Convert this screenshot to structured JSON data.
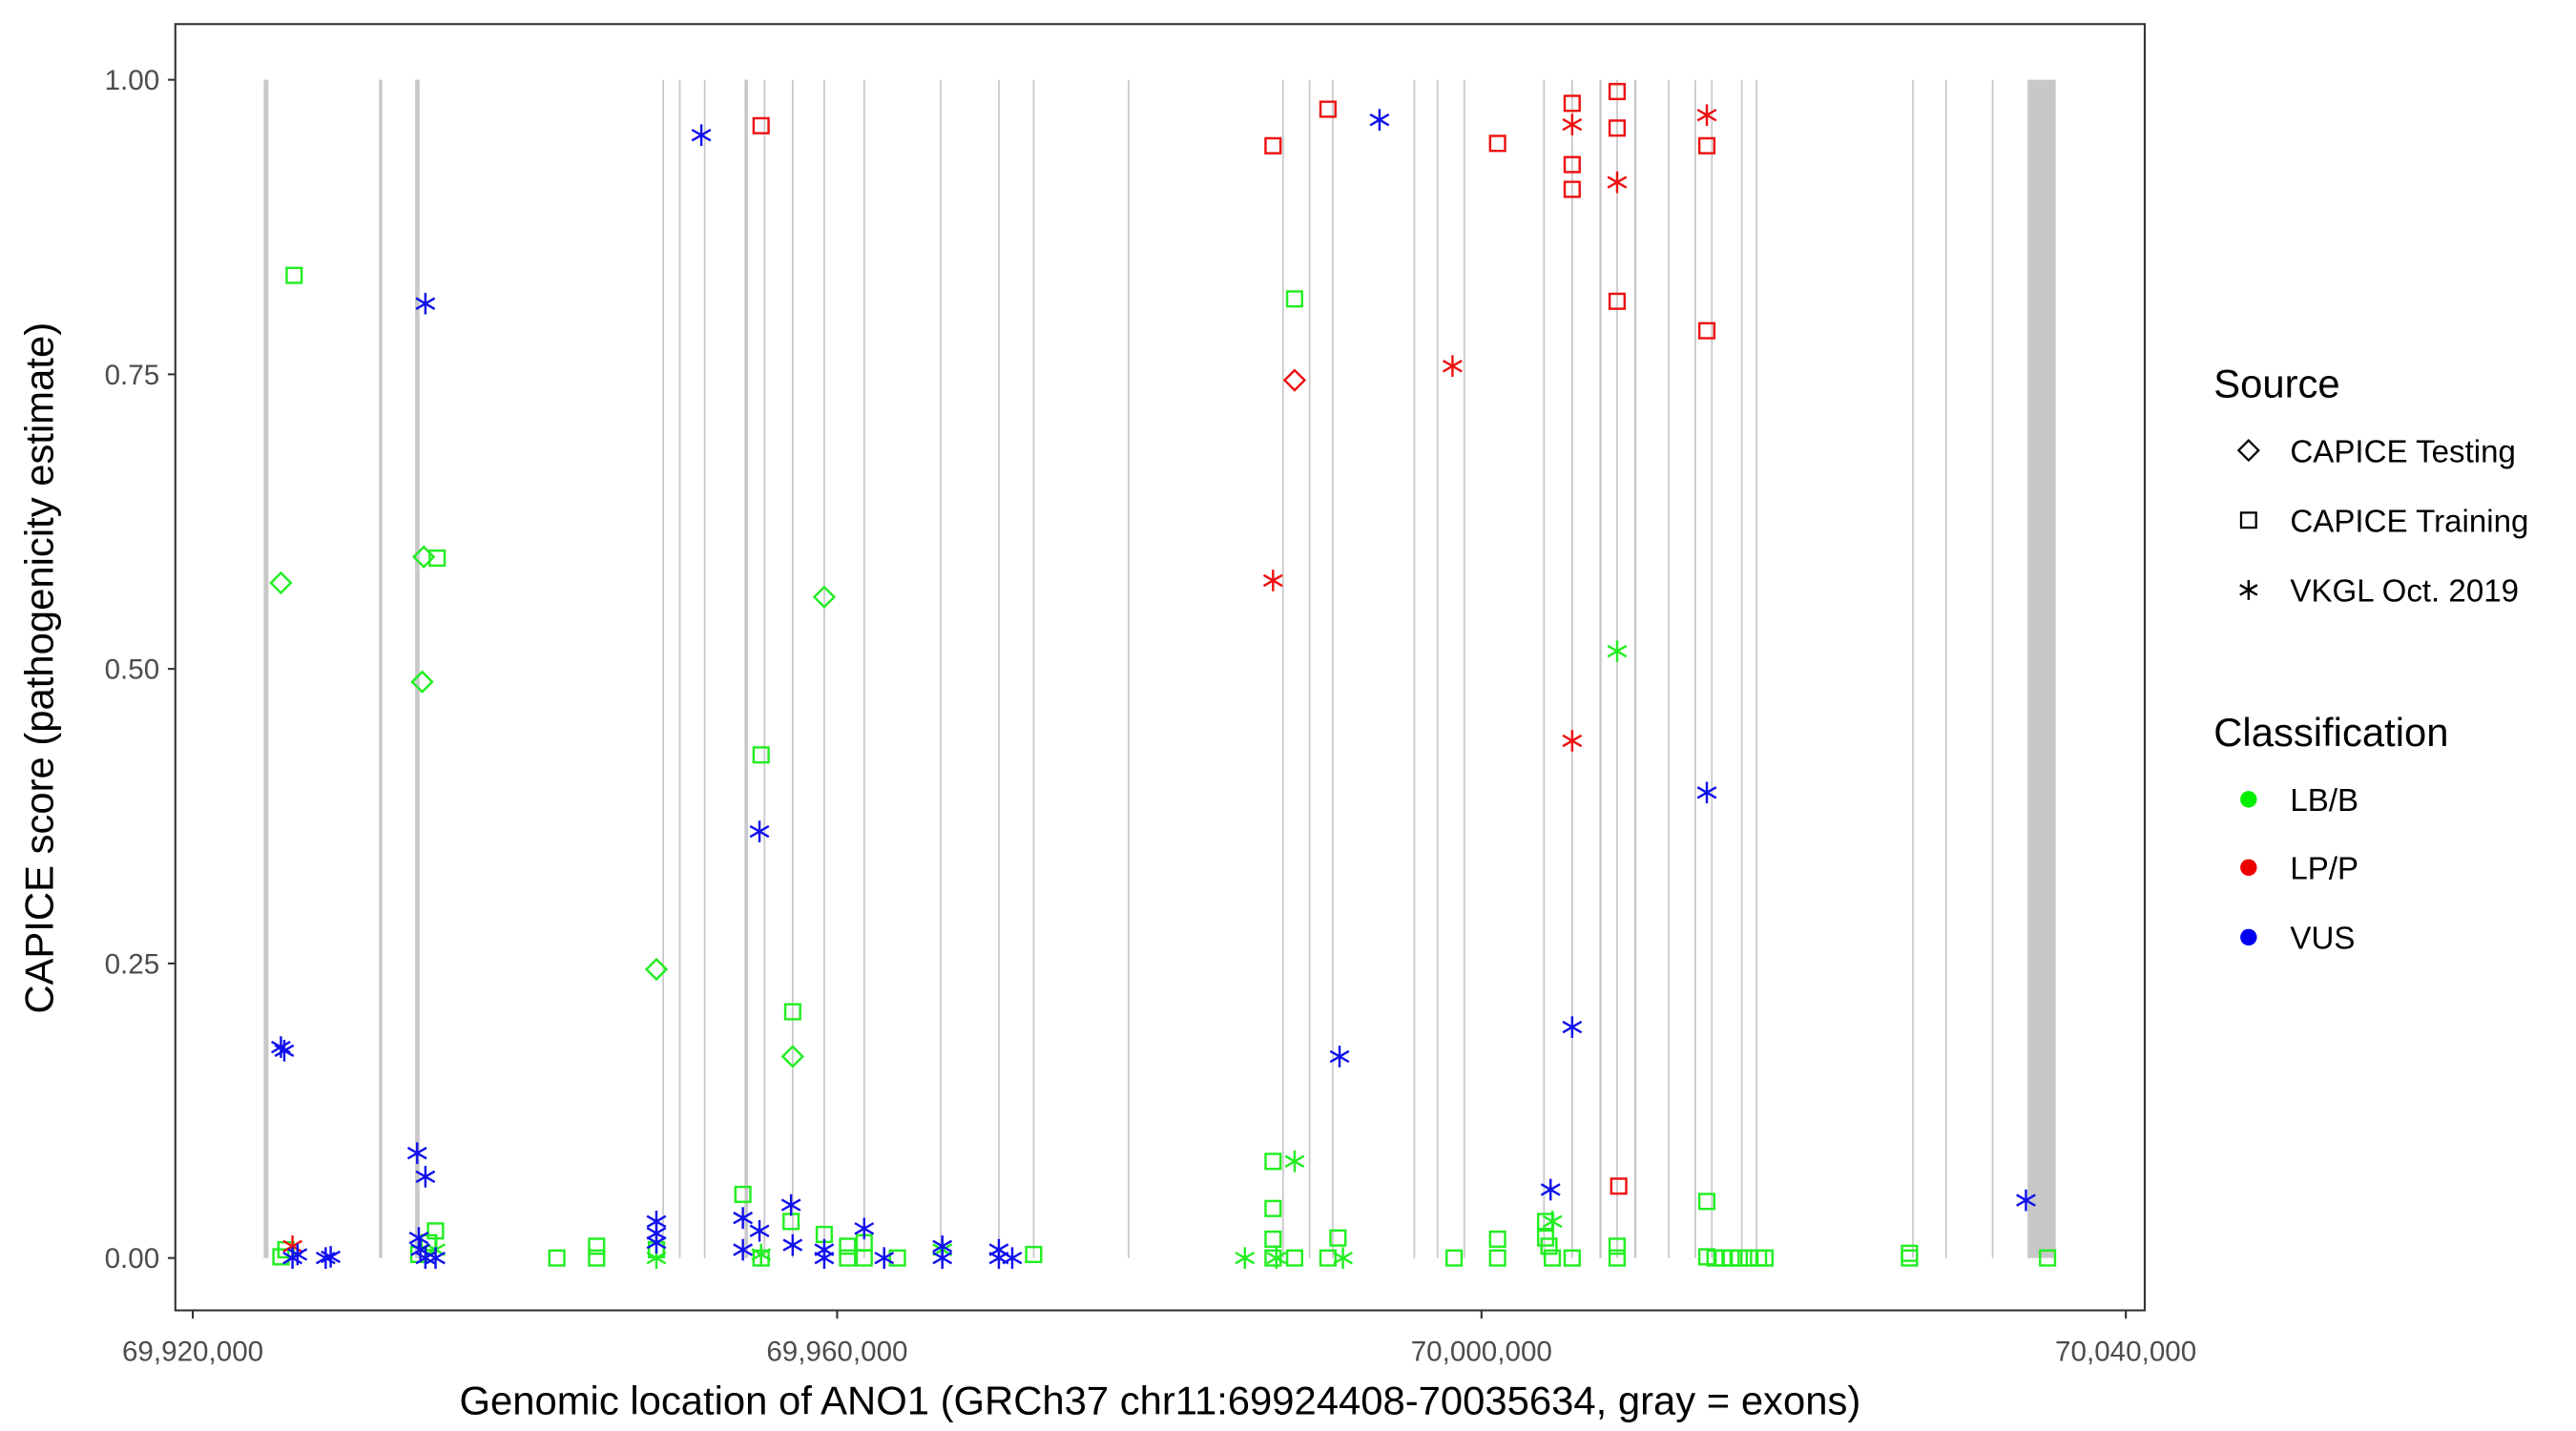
{
  "chart_data": {
    "type": "scatter",
    "xlabel": "Genomic location of ANO1 (GRCh37 chr11:69924408-70035634, gray = exons)",
    "ylabel": "CAPICE score (pathogenicity estimate)",
    "xlim": [
      69917000,
      70040600
    ],
    "ylim": [
      -0.045,
      1.047
    ],
    "xticks": [
      69920000,
      69960000,
      70000000,
      70040000
    ],
    "xtick_labels": [
      "69,920,000",
      "69,960,000",
      "70,000,000",
      "70,040,000"
    ],
    "yticks": [
      0,
      0.25,
      0.5,
      0.75,
      1.0
    ],
    "ytick_labels": [
      "0.00",
      "0.25",
      "0.50",
      "0.75",
      "1.00"
    ],
    "grid": false,
    "legend": {
      "placement": "right",
      "source_title": "Source",
      "source_items": [
        {
          "label": "CAPICE Testing",
          "shape": "diamond"
        },
        {
          "label": "CAPICE Training",
          "shape": "square"
        },
        {
          "label": "VKGL Oct. 2019",
          "shape": "asterisk"
        }
      ],
      "class_title": "Classification",
      "class_items": [
        {
          "label": "LB/B",
          "color": "#00ee00"
        },
        {
          "label": "LP/P",
          "color": "#ee0000"
        },
        {
          "label": "VUS",
          "color": "#0000ee"
        }
      ]
    },
    "colors": {
      "LB/B": "#22ee22",
      "LP/P": "#ee1111",
      "VUS": "#1111ee",
      "exon": "#c8c8c8"
    },
    "exons": [
      [
        69924400,
        69924700
      ],
      [
        69931560,
        69931760
      ],
      [
        69933800,
        69934080
      ],
      [
        69949150,
        69949250
      ],
      [
        69950180,
        69950280
      ],
      [
        69951730,
        69951830
      ],
      [
        69954250,
        69954470
      ],
      [
        69955440,
        69955540
      ],
      [
        69957190,
        69957290
      ],
      [
        69959150,
        69959250
      ],
      [
        69961630,
        69961730
      ],
      [
        69966380,
        69966480
      ],
      [
        69969990,
        69970090
      ],
      [
        69972150,
        69972250
      ],
      [
        69978040,
        69978140
      ],
      [
        69987630,
        69987730
      ],
      [
        69989280,
        69989380
      ],
      [
        69990720,
        69990820
      ],
      [
        69995780,
        69995880
      ],
      [
        69997220,
        69997320
      ],
      [
        69998880,
        69998980
      ],
      [
        70003830,
        70003930
      ],
      [
        70005580,
        70005680
      ],
      [
        70007320,
        70007460
      ],
      [
        70008370,
        70008470
      ],
      [
        70009480,
        70009620
      ],
      [
        70011570,
        70011670
      ],
      [
        70013220,
        70013320
      ],
      [
        70014250,
        70014350
      ],
      [
        70016110,
        70016210
      ],
      [
        70017030,
        70017130
      ],
      [
        70026730,
        70026830
      ],
      [
        70028790,
        70028890
      ],
      [
        70031680,
        70031780
      ],
      [
        70033900,
        70035650
      ]
    ],
    "points": [
      {
        "pos": 69926290,
        "score": 0.834,
        "source": "square",
        "class": "LB/B"
      },
      {
        "pos": 69925470,
        "score": 0.573,
        "source": "diamond",
        "class": "LB/B"
      },
      {
        "pos": 69925470,
        "score": 0.001,
        "source": "square",
        "class": "LB/B"
      },
      {
        "pos": 69925780,
        "score": 0.007,
        "source": "square",
        "class": "LB/B"
      },
      {
        "pos": 69934340,
        "score": 0.595,
        "source": "diamond",
        "class": "LB/B"
      },
      {
        "pos": 69935170,
        "score": 0.594,
        "source": "square",
        "class": "LB/B"
      },
      {
        "pos": 69934240,
        "score": 0.489,
        "source": "diamond",
        "class": "LB/B"
      },
      {
        "pos": 69935070,
        "score": 0.023,
        "source": "square",
        "class": "LB/B"
      },
      {
        "pos": 69934650,
        "score": 0.013,
        "source": "square",
        "class": "LB/B"
      },
      {
        "pos": 69934030,
        "score": 0.003,
        "source": "square",
        "class": "LB/B"
      },
      {
        "pos": 69935070,
        "score": 0.007,
        "source": "asterisk",
        "class": "LB/B"
      },
      {
        "pos": 69942600,
        "score": 0.0,
        "source": "square",
        "class": "LB/B"
      },
      {
        "pos": 69945070,
        "score": 0.01,
        "source": "square",
        "class": "LB/B"
      },
      {
        "pos": 69945070,
        "score": 0.0,
        "source": "square",
        "class": "LB/B"
      },
      {
        "pos": 69948780,
        "score": 0.245,
        "source": "diamond",
        "class": "LB/B"
      },
      {
        "pos": 69948780,
        "score": 0.0,
        "source": "asterisk",
        "class": "LB/B"
      },
      {
        "pos": 69948780,
        "score": 0.007,
        "source": "square",
        "class": "LB/B"
      },
      {
        "pos": 69954150,
        "score": 0.054,
        "source": "square",
        "class": "LB/B"
      },
      {
        "pos": 69955280,
        "score": 0.427,
        "source": "square",
        "class": "LB/B"
      },
      {
        "pos": 69957240,
        "score": 0.209,
        "source": "square",
        "class": "LB/B"
      },
      {
        "pos": 69957240,
        "score": 0.171,
        "source": "diamond",
        "class": "LB/B"
      },
      {
        "pos": 69959200,
        "score": 0.561,
        "source": "diamond",
        "class": "LB/B"
      },
      {
        "pos": 69957140,
        "score": 0.031,
        "source": "square",
        "class": "LB/B"
      },
      {
        "pos": 69959200,
        "score": 0.02,
        "source": "square",
        "class": "LB/B"
      },
      {
        "pos": 69960650,
        "score": 0.01,
        "source": "square",
        "class": "LB/B"
      },
      {
        "pos": 69961680,
        "score": 0.013,
        "source": "square",
        "class": "LB/B"
      },
      {
        "pos": 69960650,
        "score": 0.0,
        "source": "square",
        "class": "LB/B"
      },
      {
        "pos": 69963740,
        "score": 0.0,
        "source": "square",
        "class": "LB/B"
      },
      {
        "pos": 69961680,
        "score": 0.0,
        "source": "square",
        "class": "LB/B"
      },
      {
        "pos": 69955280,
        "score": 0.0,
        "source": "square",
        "class": "LB/B"
      },
      {
        "pos": 69955280,
        "score": 0.003,
        "source": "asterisk",
        "class": "LB/B"
      },
      {
        "pos": 69966530,
        "score": 0.007,
        "source": "asterisk",
        "class": "LB/B"
      },
      {
        "pos": 69972200,
        "score": 0.003,
        "source": "square",
        "class": "LB/B"
      },
      {
        "pos": 69985310,
        "score": 0.0,
        "source": "asterisk",
        "class": "LB/B"
      },
      {
        "pos": 69987060,
        "score": 0.082,
        "source": "square",
        "class": "LB/B"
      },
      {
        "pos": 69987060,
        "score": 0.042,
        "source": "square",
        "class": "LB/B"
      },
      {
        "pos": 69987060,
        "score": 0.016,
        "source": "square",
        "class": "LB/B"
      },
      {
        "pos": 69987060,
        "score": 0.0,
        "source": "square",
        "class": "LB/B"
      },
      {
        "pos": 69988400,
        "score": 0.814,
        "source": "square",
        "class": "LB/B"
      },
      {
        "pos": 69988400,
        "score": 0.082,
        "source": "asterisk",
        "class": "LB/B"
      },
      {
        "pos": 69987270,
        "score": 0.0,
        "source": "asterisk",
        "class": "LB/B"
      },
      {
        "pos": 69991400,
        "score": 0.0,
        "source": "asterisk",
        "class": "LB/B"
      },
      {
        "pos": 69988400,
        "score": 0.0,
        "source": "square",
        "class": "LB/B"
      },
      {
        "pos": 69990470,
        "score": 0.0,
        "source": "square",
        "class": "LB/B"
      },
      {
        "pos": 69991090,
        "score": 0.017,
        "source": "square",
        "class": "LB/B"
      },
      {
        "pos": 69998300,
        "score": 0.0,
        "source": "square",
        "class": "LB/B"
      },
      {
        "pos": 70001000,
        "score": 0.016,
        "source": "square",
        "class": "LB/B"
      },
      {
        "pos": 70001000,
        "score": 0.0,
        "source": "square",
        "class": "LB/B"
      },
      {
        "pos": 70008420,
        "score": 0.515,
        "source": "asterisk",
        "class": "LB/B"
      },
      {
        "pos": 70004400,
        "score": 0.031,
        "source": "asterisk",
        "class": "LB/B"
      },
      {
        "pos": 70003980,
        "score": 0.017,
        "source": "square",
        "class": "LB/B"
      },
      {
        "pos": 70003980,
        "score": 0.031,
        "source": "square",
        "class": "LB/B"
      },
      {
        "pos": 70004190,
        "score": 0.01,
        "source": "square",
        "class": "LB/B"
      },
      {
        "pos": 70004400,
        "score": 0.0,
        "source": "square",
        "class": "LB/B"
      },
      {
        "pos": 70005630,
        "score": 0.0,
        "source": "square",
        "class": "LB/B"
      },
      {
        "pos": 70008420,
        "score": 0.01,
        "source": "square",
        "class": "LB/B"
      },
      {
        "pos": 70008420,
        "score": 0.0,
        "source": "square",
        "class": "LB/B"
      },
      {
        "pos": 70013990,
        "score": 0.048,
        "source": "square",
        "class": "LB/B"
      },
      {
        "pos": 70013990,
        "score": 0.001,
        "source": "square",
        "class": "LB/B"
      },
      {
        "pos": 70014500,
        "score": 0.0,
        "source": "square",
        "class": "LB/B"
      },
      {
        "pos": 70015000,
        "score": 0.0,
        "source": "square",
        "class": "LB/B"
      },
      {
        "pos": 70015500,
        "score": 0.0,
        "source": "square",
        "class": "LB/B"
      },
      {
        "pos": 70016000,
        "score": 0.0,
        "source": "square",
        "class": "LB/B"
      },
      {
        "pos": 70016600,
        "score": 0.0,
        "source": "square",
        "class": "LB/B"
      },
      {
        "pos": 70017200,
        "score": 0.0,
        "source": "square",
        "class": "LB/B"
      },
      {
        "pos": 70017600,
        "score": 0.0,
        "source": "square",
        "class": "LB/B"
      },
      {
        "pos": 70026570,
        "score": 0.004,
        "source": "square",
        "class": "LB/B"
      },
      {
        "pos": 70026570,
        "score": 0.0,
        "source": "square",
        "class": "LB/B"
      },
      {
        "pos": 70035140,
        "score": 0.0,
        "source": "square",
        "class": "LB/B"
      },
      {
        "pos": 69926190,
        "score": 0.01,
        "source": "asterisk",
        "class": "LP/P"
      },
      {
        "pos": 69955280,
        "score": 0.961,
        "source": "square",
        "class": "LP/P"
      },
      {
        "pos": 69987060,
        "score": 0.944,
        "source": "square",
        "class": "LP/P"
      },
      {
        "pos": 69990470,
        "score": 0.975,
        "source": "square",
        "class": "LP/P"
      },
      {
        "pos": 69988400,
        "score": 0.745,
        "source": "diamond",
        "class": "LP/P"
      },
      {
        "pos": 69987060,
        "score": 0.575,
        "source": "asterisk",
        "class": "LP/P"
      },
      {
        "pos": 69998200,
        "score": 0.757,
        "source": "asterisk",
        "class": "LP/P"
      },
      {
        "pos": 70001000,
        "score": 0.946,
        "source": "square",
        "class": "LP/P"
      },
      {
        "pos": 70005630,
        "score": 0.98,
        "source": "square",
        "class": "LP/P"
      },
      {
        "pos": 70005630,
        "score": 0.928,
        "source": "square",
        "class": "LP/P"
      },
      {
        "pos": 70005630,
        "score": 0.907,
        "source": "square",
        "class": "LP/P"
      },
      {
        "pos": 70005630,
        "score": 0.962,
        "source": "asterisk",
        "class": "LP/P"
      },
      {
        "pos": 70005630,
        "score": 0.439,
        "source": "asterisk",
        "class": "LP/P"
      },
      {
        "pos": 70008420,
        "score": 0.99,
        "source": "square",
        "class": "LP/P"
      },
      {
        "pos": 70008420,
        "score": 0.959,
        "source": "square",
        "class": "LP/P"
      },
      {
        "pos": 70008420,
        "score": 0.812,
        "source": "square",
        "class": "LP/P"
      },
      {
        "pos": 70008520,
        "score": 0.061,
        "source": "square",
        "class": "LP/P"
      },
      {
        "pos": 70008420,
        "score": 0.913,
        "source": "asterisk",
        "class": "LP/P"
      },
      {
        "pos": 70013990,
        "score": 0.97,
        "source": "asterisk",
        "class": "LP/P"
      },
      {
        "pos": 70013990,
        "score": 0.944,
        "source": "square",
        "class": "LP/P"
      },
      {
        "pos": 70013990,
        "score": 0.787,
        "source": "square",
        "class": "LP/P"
      },
      {
        "pos": 69925470,
        "score": 0.179,
        "source": "asterisk",
        "class": "VUS"
      },
      {
        "pos": 69925680,
        "score": 0.176,
        "source": "asterisk",
        "class": "VUS"
      },
      {
        "pos": 69926190,
        "score": 0.0,
        "source": "asterisk",
        "class": "VUS"
      },
      {
        "pos": 69926500,
        "score": 0.003,
        "source": "asterisk",
        "class": "VUS"
      },
      {
        "pos": 69928250,
        "score": 0.0,
        "source": "asterisk",
        "class": "VUS"
      },
      {
        "pos": 69928560,
        "score": 0.001,
        "source": "asterisk",
        "class": "VUS"
      },
      {
        "pos": 69934440,
        "score": 0.81,
        "source": "asterisk",
        "class": "VUS"
      },
      {
        "pos": 69933930,
        "score": 0.089,
        "source": "asterisk",
        "class": "VUS"
      },
      {
        "pos": 69934440,
        "score": 0.069,
        "source": "asterisk",
        "class": "VUS"
      },
      {
        "pos": 69934030,
        "score": 0.017,
        "source": "asterisk",
        "class": "VUS"
      },
      {
        "pos": 69934130,
        "score": 0.007,
        "source": "asterisk",
        "class": "VUS"
      },
      {
        "pos": 69934440,
        "score": 0.0,
        "source": "asterisk",
        "class": "VUS"
      },
      {
        "pos": 69935070,
        "score": 0.0,
        "source": "asterisk",
        "class": "VUS"
      },
      {
        "pos": 69951570,
        "score": 0.953,
        "source": "asterisk",
        "class": "VUS"
      },
      {
        "pos": 69955180,
        "score": 0.362,
        "source": "asterisk",
        "class": "VUS"
      },
      {
        "pos": 69948780,
        "score": 0.031,
        "source": "asterisk",
        "class": "VUS"
      },
      {
        "pos": 69948780,
        "score": 0.021,
        "source": "asterisk",
        "class": "VUS"
      },
      {
        "pos": 69948780,
        "score": 0.013,
        "source": "asterisk",
        "class": "VUS"
      },
      {
        "pos": 69954150,
        "score": 0.034,
        "source": "asterisk",
        "class": "VUS"
      },
      {
        "pos": 69954150,
        "score": 0.007,
        "source": "asterisk",
        "class": "VUS"
      },
      {
        "pos": 69955180,
        "score": 0.023,
        "source": "asterisk",
        "class": "VUS"
      },
      {
        "pos": 69957140,
        "score": 0.045,
        "source": "asterisk",
        "class": "VUS"
      },
      {
        "pos": 69957240,
        "score": 0.011,
        "source": "asterisk",
        "class": "VUS"
      },
      {
        "pos": 69959200,
        "score": 0.007,
        "source": "asterisk",
        "class": "VUS"
      },
      {
        "pos": 69959200,
        "score": 0.0,
        "source": "asterisk",
        "class": "VUS"
      },
      {
        "pos": 69961680,
        "score": 0.025,
        "source": "asterisk",
        "class": "VUS"
      },
      {
        "pos": 69962920,
        "score": 0.0,
        "source": "asterisk",
        "class": "VUS"
      },
      {
        "pos": 69966530,
        "score": 0.01,
        "source": "asterisk",
        "class": "VUS"
      },
      {
        "pos": 69966530,
        "score": 0.0,
        "source": "asterisk",
        "class": "VUS"
      },
      {
        "pos": 69970040,
        "score": 0.007,
        "source": "asterisk",
        "class": "VUS"
      },
      {
        "pos": 69970040,
        "score": 0.0,
        "source": "asterisk",
        "class": "VUS"
      },
      {
        "pos": 69970870,
        "score": 0.0,
        "source": "asterisk",
        "class": "VUS"
      },
      {
        "pos": 69993670,
        "score": 0.966,
        "source": "asterisk",
        "class": "VUS"
      },
      {
        "pos": 69991190,
        "score": 0.171,
        "source": "asterisk",
        "class": "VUS"
      },
      {
        "pos": 70004290,
        "score": 0.058,
        "source": "asterisk",
        "class": "VUS"
      },
      {
        "pos": 70005630,
        "score": 0.196,
        "source": "asterisk",
        "class": "VUS"
      },
      {
        "pos": 70013990,
        "score": 0.395,
        "source": "asterisk",
        "class": "VUS"
      },
      {
        "pos": 70033800,
        "score": 0.049,
        "source": "asterisk",
        "class": "VUS"
      }
    ]
  }
}
